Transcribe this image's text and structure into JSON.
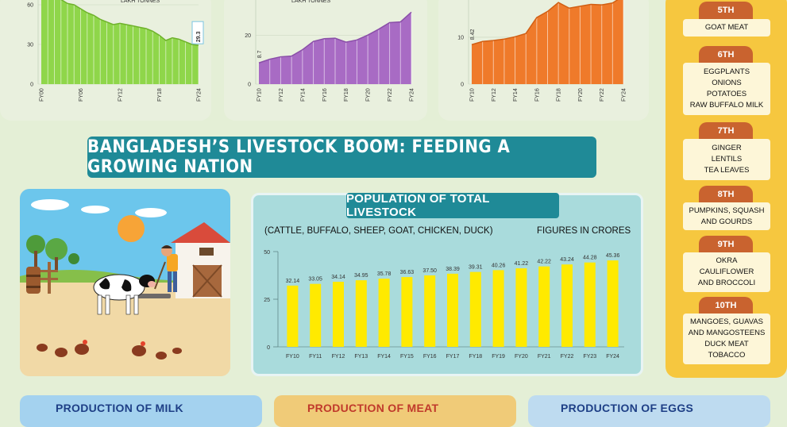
{
  "headline": "BANGLADESH’S LIVESTOCK BOOM: FEEDING A GROWING NATION",
  "top_chart_labels": {
    "left": "LAKH TONNES",
    "middle": "LAKH TONNES"
  },
  "population": {
    "title": "POPULATION OF TOTAL LIVESTOCK",
    "subtitle": "(CATTLE, BUFFALO, SHEEP, GOAT, CHICKEN, DUCK)",
    "unit_note": "FIGURES IN CRORES"
  },
  "ranks": [
    {
      "rank": "5TH",
      "items": [
        "GOAT MEAT"
      ]
    },
    {
      "rank": "6TH",
      "items": [
        "EGGPLANTS",
        "ONIONS",
        "POTATOES",
        "RAW BUFFALO MILK"
      ]
    },
    {
      "rank": "7TH",
      "items": [
        "GINGER",
        "LENTILS",
        "TEA LEAVES"
      ]
    },
    {
      "rank": "8TH",
      "items": [
        "PUMPKINS, SQUASH",
        "AND GOURDS"
      ]
    },
    {
      "rank": "9TH",
      "items": [
        "OKRA",
        "CAULIFLOWER",
        "AND BROCCOLI"
      ]
    },
    {
      "rank": "10TH",
      "items": [
        "MANGOES, GUAVAS",
        "AND MANGOSTEENS",
        "DUCK MEAT",
        "TOBACCO"
      ]
    }
  ],
  "bottom_titles": {
    "milk": "PRODUCTION OF MILK",
    "meat": "PRODUCTION OF MEAT",
    "eggs": "PRODUCTION OF EGGS"
  },
  "colors": {
    "green": "#8fd64a",
    "purple": "#a86bc4",
    "orange": "#ef7a2a",
    "yellow": "#ffea00",
    "teal": "#1f8a97"
  },
  "chart_data": [
    {
      "type": "area",
      "title": "",
      "ylabel": "LAKH TONNES",
      "ylim": [
        0,
        60
      ],
      "yticks": [
        0,
        30,
        60
      ],
      "xticks": [
        "FY00",
        "FY06",
        "FY12",
        "FY18",
        "FY24"
      ],
      "x": [
        "FY00",
        "FY01",
        "FY02",
        "FY03",
        "FY04",
        "FY05",
        "FY06",
        "FY07",
        "FY08",
        "FY09",
        "FY10",
        "FY11",
        "FY12",
        "FY13",
        "FY14",
        "FY15",
        "FY16",
        "FY17",
        "FY18",
        "FY19",
        "FY20",
        "FY21",
        "FY22",
        "FY23",
        "FY24"
      ],
      "values": [
        70,
        69,
        68,
        64,
        61,
        60,
        57,
        54,
        52,
        49,
        47,
        45,
        46,
        45,
        44,
        43,
        42,
        40,
        37,
        33,
        35,
        34,
        32,
        30,
        29.3
      ],
      "data_labels": [
        {
          "x": "FY24",
          "text": "29.3"
        }
      ]
    },
    {
      "type": "area",
      "title": "",
      "ylabel": "LAKH TONNES",
      "ylim": [
        0,
        40
      ],
      "yticks": [
        0,
        20
      ],
      "xticks": [
        "FY10",
        "FY12",
        "FY14",
        "FY16",
        "FY18",
        "FY20",
        "FY22",
        "FY24"
      ],
      "x": [
        "FY10",
        "FY11",
        "FY12",
        "FY13",
        "FY14",
        "FY15",
        "FY16",
        "FY17",
        "FY18",
        "FY19",
        "FY20",
        "FY21",
        "FY22",
        "FY23",
        "FY24"
      ],
      "values": [
        8.7,
        10.2,
        11.2,
        11.5,
        14.1,
        17.5,
        18.6,
        18.8,
        17.2,
        18.1,
        20.1,
        22.5,
        25.2,
        25.5,
        29.5
      ],
      "data_labels": [
        {
          "x": "FY10",
          "text": "8.7"
        }
      ]
    },
    {
      "type": "area",
      "title": "",
      "ylabel": "",
      "ylim": [
        0,
        22
      ],
      "yticks": [
        0,
        10
      ],
      "xticks": [
        "FY10",
        "FY12",
        "FY14",
        "FY16",
        "FY18",
        "FY20",
        "FY22",
        "FY24"
      ],
      "x": [
        "FY10",
        "FY11",
        "FY12",
        "FY13",
        "FY14",
        "FY15",
        "FY16",
        "FY17",
        "FY18",
        "FY19",
        "FY20",
        "FY21",
        "FY22",
        "FY23",
        "FY24"
      ],
      "values": [
        8.42,
        9.1,
        9.3,
        9.6,
        10.1,
        10.8,
        14.2,
        15.5,
        17.4,
        16.2,
        16.6,
        17,
        16.9,
        17.3,
        22
      ],
      "data_labels": [
        {
          "x": "FY10",
          "text": "8.42"
        }
      ]
    },
    {
      "type": "bar",
      "title": "POPULATION OF TOTAL LIVESTOCK",
      "ylabel": "FIGURES IN CRORES",
      "ylim": [
        0,
        50
      ],
      "yticks": [
        0,
        25,
        50
      ],
      "categories": [
        "FY10",
        "FY11",
        "FY12",
        "FY13",
        "FY14",
        "FY15",
        "FY16",
        "FY17",
        "FY18",
        "FY19",
        "FY20",
        "FY21",
        "FY22",
        "FY23",
        "FY24"
      ],
      "values": [
        32.14,
        33.05,
        34.14,
        34.95,
        35.78,
        36.63,
        37.5,
        38.39,
        39.31,
        40.26,
        41.22,
        42.22,
        43.24,
        44.28,
        45.36
      ],
      "value_labels": [
        "32.14",
        "33.05",
        "34.14",
        "34.95",
        "35.78",
        "36.63",
        "37.50",
        "38.39",
        "39.31",
        "40.26",
        "41.22",
        "42.22",
        "43.24",
        "44.28",
        "45.36"
      ]
    }
  ]
}
